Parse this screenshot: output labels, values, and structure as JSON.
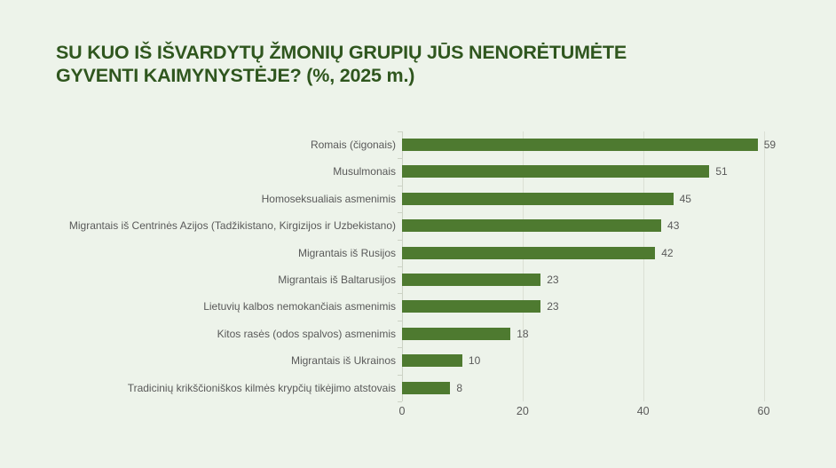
{
  "header": {
    "title_line1": "SU KUO IŠ IŠVARDYTŲ ŽMONIŲ GRUPIŲ JŪS NENORĖTUMĖTE",
    "title_line2": "GYVENTI KAIMYNYSTĖJE? (%, 2025 m.)"
  },
  "chart_data": {
    "type": "bar",
    "orientation": "horizontal",
    "title": "SU KUO IŠ IŠVARDYTŲ ŽMONIŲ GRUPIŲ JŪS NENORĖTUMĖTE GYVENTI KAIMYNYSTĖJE? (%, 2025 m.)",
    "categories": [
      "Romais (čigonais)",
      "Musulmonais",
      "Homoseksualiais asmenimis",
      "Migrantais iš Centrinės Azijos (Tadžikistano, Kirgizijos ir Uzbekistano)",
      "Migrantais iš Rusijos",
      "Migrantais iš Baltarusijos",
      "Lietuvių kalbos nemokančiais asmenimis",
      "Kitos rasės (odos spalvos) asmenimis",
      "Migrantais iš Ukrainos",
      "Tradicinių krikščioniškos kilmės krypčių tikėjimo atstovais"
    ],
    "values": [
      59,
      51,
      45,
      43,
      42,
      23,
      23,
      18,
      10,
      8
    ],
    "x_ticks": [
      0,
      20,
      40,
      60
    ],
    "x_tick_labels": [
      "0",
      "20",
      "40",
      "60"
    ],
    "xlim": [
      0,
      72
    ],
    "grid": true,
    "data_labels": true,
    "legend": "none",
    "colors": {
      "background": "#edf3ea",
      "bar": "#4e7a30",
      "title": "#2f561e",
      "text": "#595959",
      "gridline": "#dbe0d4",
      "axis_line": "#ccd2c5"
    }
  }
}
